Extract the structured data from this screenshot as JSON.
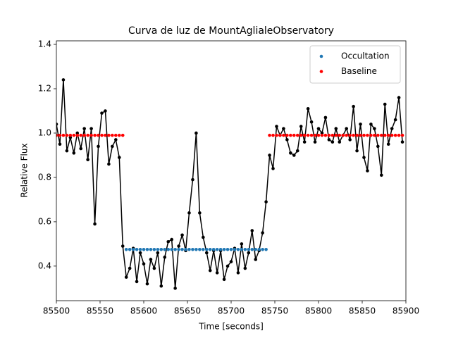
{
  "chart_data": {
    "type": "line",
    "title": "Curva de luz de MountAglialeObservatory",
    "x_label": "Time [seconds]",
    "y_label": "Relative Flux",
    "xlim": [
      85500,
      85900
    ],
    "ylim": [
      0.244,
      1.416
    ],
    "xticks": [
      85500,
      85550,
      85600,
      85650,
      85700,
      85750,
      85800,
      85850,
      85900
    ],
    "yticks": [
      0.4,
      0.6,
      0.8,
      {
        "value": 1,
        "label": "1.0"
      },
      1.2,
      1.4
    ],
    "grid": false,
    "legend": "upper right",
    "x": [
      85500,
      85504,
      85508,
      85512,
      85516,
      85520,
      85524,
      85528,
      85532,
      85536,
      85540,
      85544,
      85548,
      85552,
      85556,
      85560,
      85564,
      85568,
      85572,
      85576,
      85580,
      85584,
      85588,
      85592,
      85596,
      85600,
      85604,
      85608,
      85612,
      85616,
      85620,
      85624,
      85628,
      85632,
      85636,
      85640,
      85644,
      85648,
      85652,
      85656,
      85660,
      85664,
      85668,
      85672,
      85676,
      85680,
      85684,
      85688,
      85692,
      85696,
      85700,
      85704,
      85708,
      85712,
      85716,
      85720,
      85724,
      85728,
      85732,
      85736,
      85740,
      85744,
      85748,
      85752,
      85756,
      85760,
      85764,
      85768,
      85772,
      85776,
      85780,
      85784,
      85788,
      85792,
      85796,
      85800,
      85804,
      85808,
      85812,
      85816,
      85820,
      85824,
      85828,
      85832,
      85836,
      85840,
      85844,
      85848,
      85852,
      85856,
      85860,
      85864,
      85868,
      85872,
      85876,
      85880,
      85884,
      85888,
      85892,
      85896
    ],
    "series": [
      {
        "color": "#000000",
        "style": "line-dots",
        "values": [
          1.04,
          0.95,
          1.24,
          0.92,
          0.98,
          0.91,
          1.0,
          0.93,
          1.02,
          0.88,
          1.02,
          0.59,
          0.94,
          1.09,
          1.1,
          0.86,
          0.94,
          0.97,
          0.89,
          0.49,
          0.35,
          0.39,
          0.48,
          0.33,
          0.46,
          0.41,
          0.32,
          0.43,
          0.39,
          0.46,
          0.31,
          0.44,
          0.51,
          0.52,
          0.3,
          0.49,
          0.54,
          0.47,
          0.64,
          0.79,
          1.0,
          0.64,
          0.53,
          0.46,
          0.38,
          0.47,
          0.37,
          0.47,
          0.34,
          0.4,
          0.42,
          0.48,
          0.37,
          0.5,
          0.39,
          0.46,
          0.56,
          0.43,
          0.47,
          0.55,
          0.69,
          0.9,
          0.84,
          1.03,
          0.99,
          1.02,
          0.97,
          0.91,
          0.9,
          0.92,
          1.03,
          0.96,
          1.11,
          1.05,
          0.96,
          1.02,
          1.0,
          1.07,
          0.97,
          0.96,
          1.02,
          0.96,
          0.99,
          1.02,
          0.97,
          1.12,
          0.92,
          1.04,
          0.89,
          0.83,
          1.04,
          1.02,
          0.94,
          0.81,
          1.13,
          0.95,
          1.02,
          1.06,
          1.16,
          0.96
        ]
      },
      {
        "name": "Occultation",
        "color": "#1f77b4",
        "style": "dots",
        "values": [
          null,
          null,
          null,
          null,
          null,
          null,
          null,
          null,
          null,
          null,
          null,
          null,
          null,
          null,
          null,
          null,
          null,
          null,
          null,
          null,
          0.475,
          0.475,
          0.475,
          0.475,
          0.475,
          0.475,
          0.475,
          0.475,
          0.475,
          0.475,
          0.475,
          0.475,
          0.475,
          0.475,
          0.475,
          0.475,
          0.475,
          0.475,
          0.475,
          0.475,
          0.475,
          0.475,
          0.475,
          0.475,
          0.475,
          0.475,
          0.475,
          0.475,
          0.475,
          0.475,
          0.475,
          0.475,
          0.475,
          0.475,
          0.475,
          0.475,
          0.475,
          0.475,
          0.475,
          0.475,
          0.475,
          null,
          null,
          null,
          null,
          null,
          null,
          null,
          null,
          null,
          null,
          null,
          null,
          null,
          null,
          null,
          null,
          null,
          null,
          null,
          null,
          null,
          null,
          null,
          null,
          null,
          null,
          null,
          null,
          null,
          null,
          null,
          null,
          null,
          null,
          null,
          null,
          null,
          null,
          null
        ]
      },
      {
        "name": "Baseline",
        "color": "#ff0000",
        "style": "dots",
        "values": [
          0.99,
          0.99,
          0.99,
          0.99,
          0.99,
          0.99,
          0.99,
          0.99,
          0.99,
          0.99,
          0.99,
          0.99,
          0.99,
          0.99,
          0.99,
          0.99,
          0.99,
          0.99,
          0.99,
          0.99,
          null,
          null,
          null,
          null,
          null,
          null,
          null,
          null,
          null,
          null,
          null,
          null,
          null,
          null,
          null,
          null,
          null,
          null,
          null,
          null,
          null,
          null,
          null,
          null,
          null,
          null,
          null,
          null,
          null,
          null,
          null,
          null,
          null,
          null,
          null,
          null,
          null,
          null,
          null,
          null,
          null,
          0.99,
          0.99,
          0.99,
          0.99,
          0.99,
          0.99,
          0.99,
          0.99,
          0.99,
          0.99,
          0.99,
          0.99,
          0.99,
          0.99,
          0.99,
          0.99,
          0.99,
          0.99,
          0.99,
          0.99,
          0.99,
          0.99,
          0.99,
          0.99,
          0.99,
          0.99,
          0.99,
          0.99,
          0.99,
          0.99,
          0.99,
          0.99,
          0.99,
          0.99,
          0.99,
          0.99,
          0.99,
          0.99,
          0.99
        ]
      }
    ]
  }
}
